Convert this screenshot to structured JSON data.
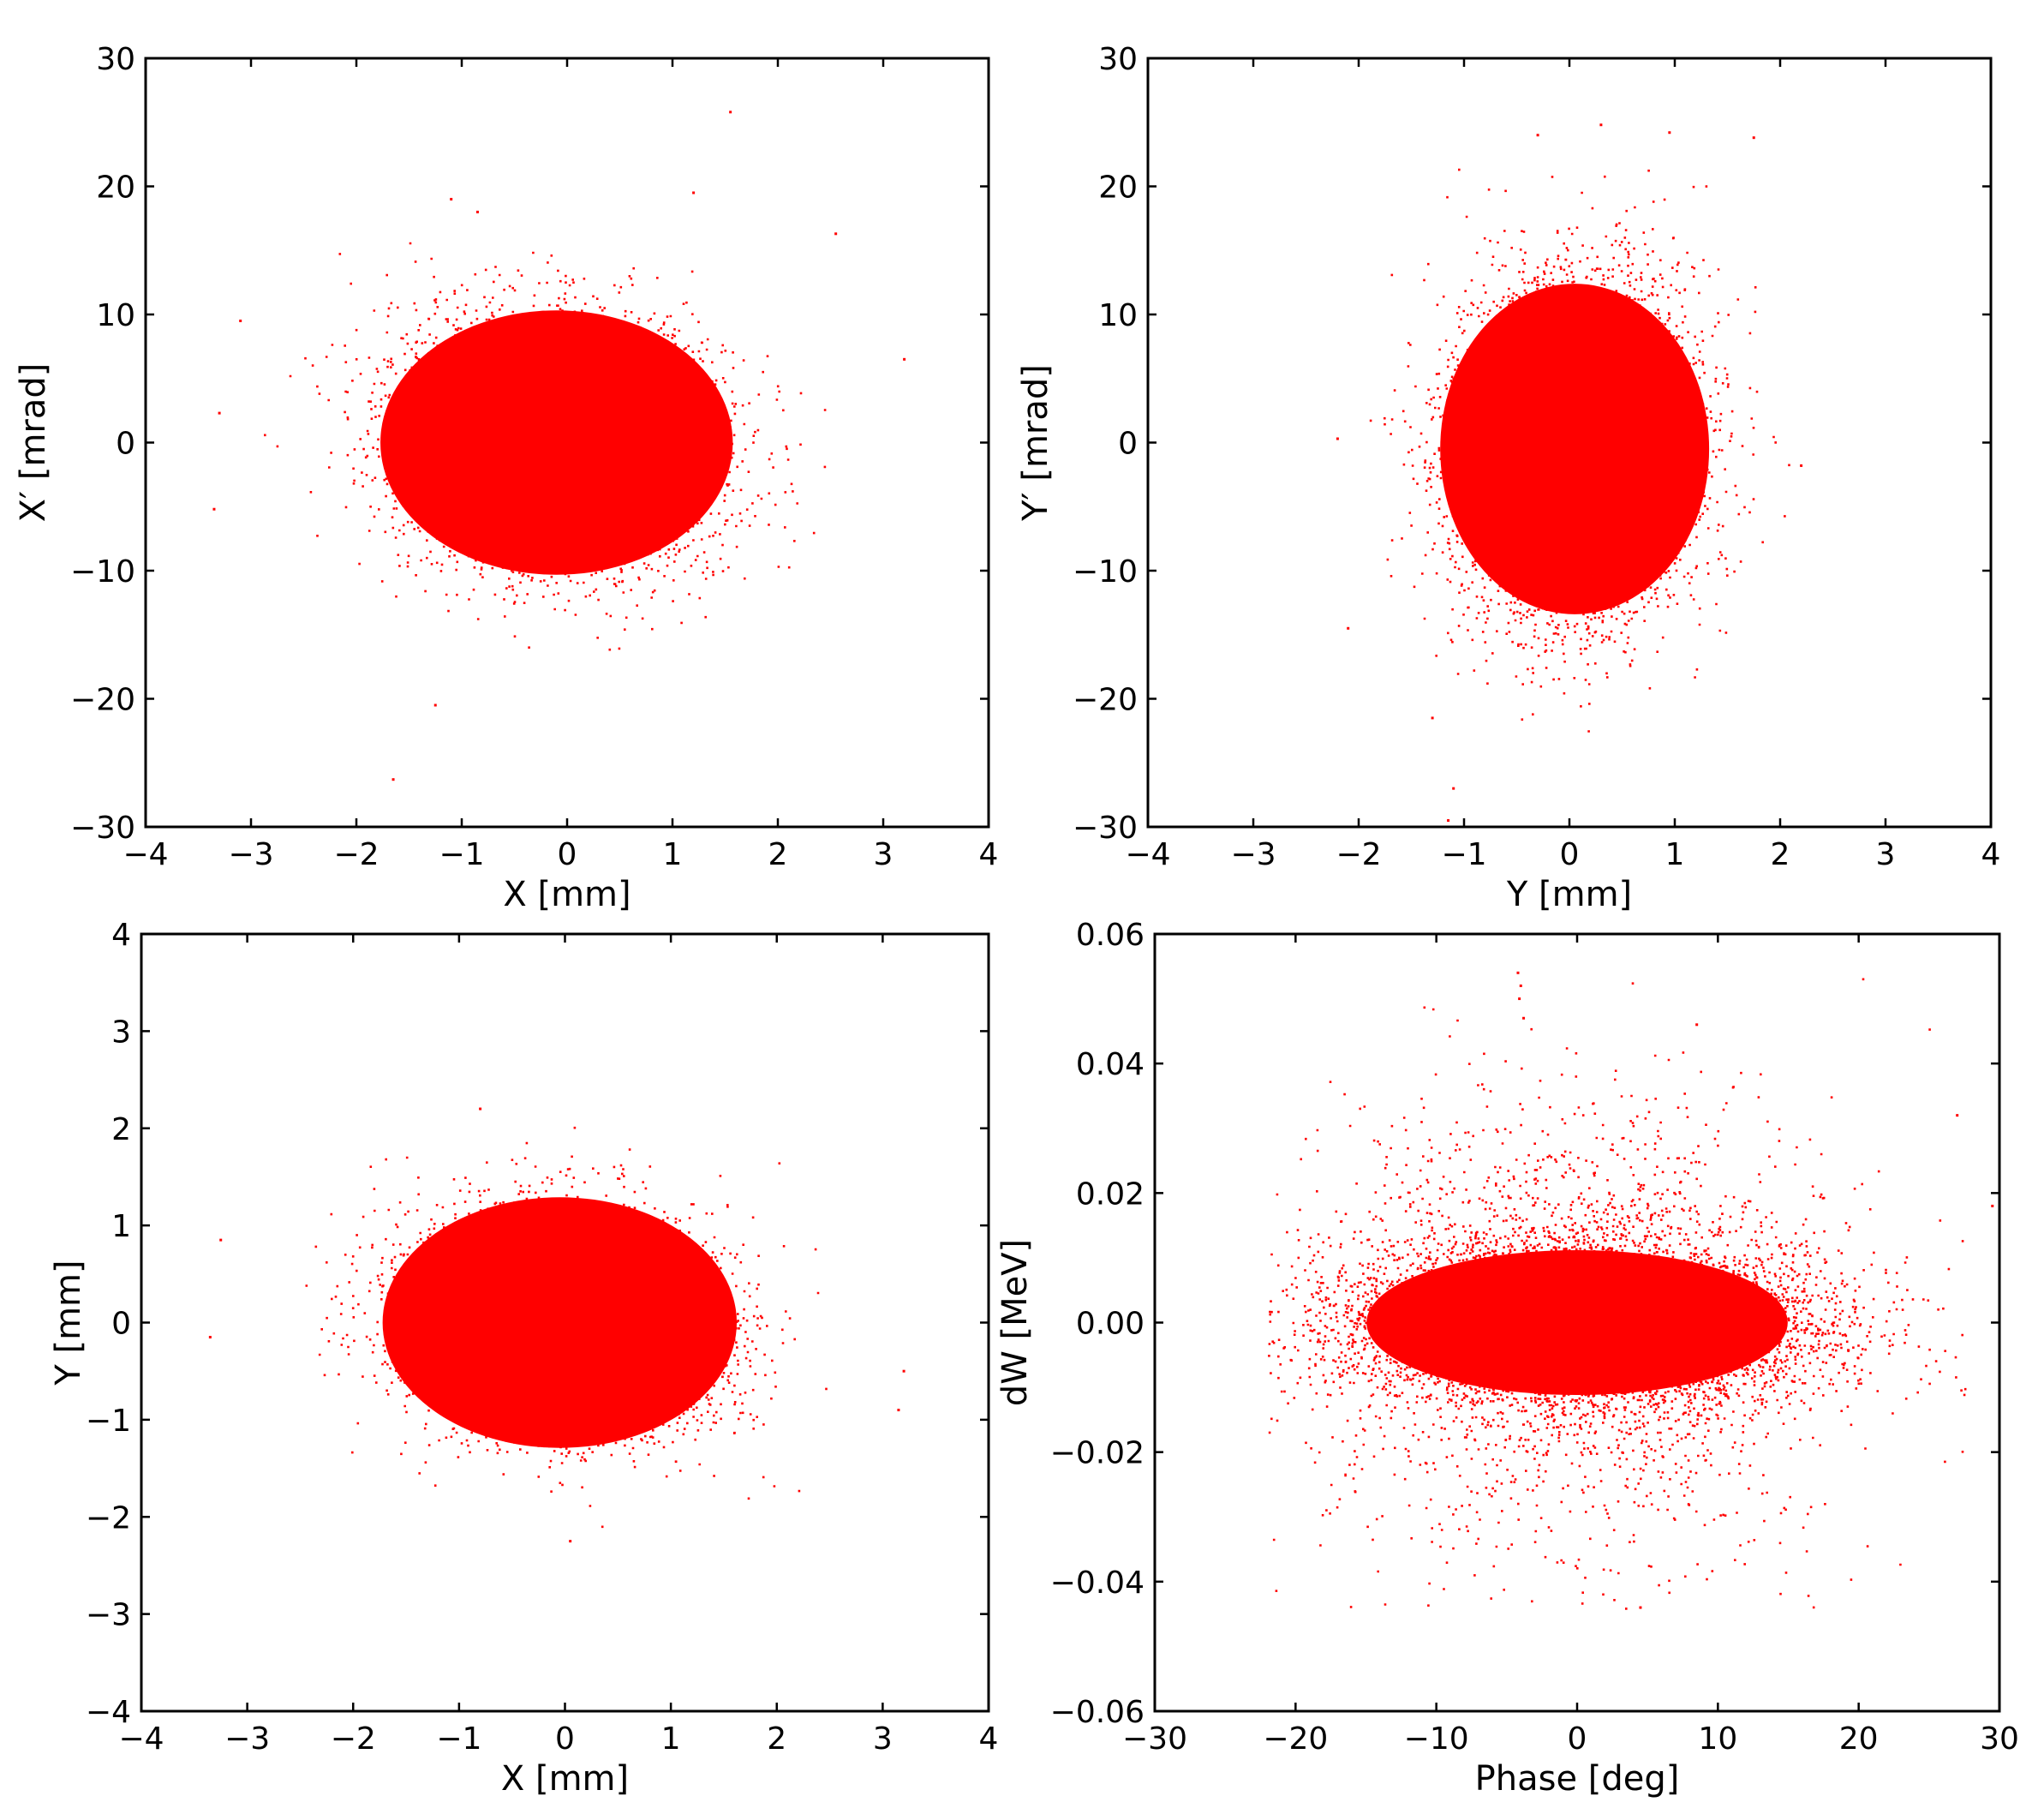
{
  "chart_data": [
    {
      "type": "scatter",
      "panel": "x-xprime",
      "xlabel": "X [mm]",
      "ylabel": "X′ [mrad]",
      "xlim": [
        -4,
        4
      ],
      "ylim": [
        -30,
        30
      ],
      "xticks": [
        -4,
        -3,
        -2,
        -1,
        0,
        1,
        2,
        3,
        4
      ],
      "yticks": [
        -30,
        -20,
        -10,
        0,
        10,
        20,
        30
      ],
      "xtick_labels": [
        "−4",
        "−3",
        "−2",
        "−1",
        "0",
        "1",
        "2",
        "3",
        "4"
      ],
      "ytick_labels": [
        "−30",
        "−20",
        "−10",
        "0",
        "10",
        "20",
        "30"
      ],
      "color": "#ff0000",
      "grid": false,
      "distribution": {
        "cx": -0.1,
        "cy": 0.0,
        "sx": 0.72,
        "sy": 4.6,
        "corr": -0.05,
        "core_half_width_x": 1.9,
        "core_half_width_y": 12,
        "x_range": [
          -3.3,
          3.2
        ],
        "y_range": [
          -17,
          16
        ]
      },
      "outliers": [
        [
          1.55,
          25.8
        ],
        [
          1.2,
          19.5
        ],
        [
          -1.1,
          19.0
        ],
        [
          -0.85,
          18.0
        ],
        [
          -1.25,
          -20.5
        ],
        [
          -1.65,
          -26.3
        ],
        [
          3.2,
          6.5
        ],
        [
          -3.3,
          2.3
        ],
        [
          -3.35,
          -5.2
        ],
        [
          -3.1,
          9.5
        ],
        [
          2.55,
          16.3
        ]
      ]
    },
    {
      "type": "scatter",
      "panel": "y-yprime",
      "xlabel": "Y [mm]",
      "ylabel": "Y′ [mrad]",
      "xlim": [
        -4,
        4
      ],
      "ylim": [
        -30,
        30
      ],
      "xticks": [
        -4,
        -3,
        -2,
        -1,
        0,
        1,
        2,
        3,
        4
      ],
      "yticks": [
        -30,
        -20,
        -10,
        0,
        10,
        20,
        30
      ],
      "xtick_labels": [
        "−4",
        "−3",
        "−2",
        "−1",
        "0",
        "1",
        "2",
        "3",
        "4"
      ],
      "ytick_labels": [
        "−30",
        "−20",
        "−10",
        "0",
        "10",
        "20",
        "30"
      ],
      "color": "#ff0000",
      "grid": false,
      "distribution": {
        "cx": 0.05,
        "cy": -0.5,
        "sx": 0.55,
        "sy": 6.5,
        "corr": 0.05,
        "core_half_width_x": 1.45,
        "core_half_width_y": 15,
        "x_range": [
          -2.2,
          2.2
        ],
        "y_range": [
          -24,
          24
        ]
      },
      "outliers": [
        [
          -1.15,
          -29.5
        ],
        [
          -1.1,
          -27.0
        ],
        [
          0.3,
          24.8
        ],
        [
          0.95,
          24.2
        ],
        [
          1.75,
          23.8
        ],
        [
          -0.3,
          24.0
        ],
        [
          -2.2,
          0.3
        ],
        [
          -2.1,
          -14.5
        ],
        [
          2.2,
          -1.8
        ],
        [
          -1.3,
          -21.5
        ]
      ]
    },
    {
      "type": "scatter",
      "panel": "x-y",
      "xlabel": "X [mm]",
      "ylabel": "Y [mm]",
      "xlim": [
        -4,
        4
      ],
      "ylim": [
        -4,
        4
      ],
      "xticks": [
        -4,
        -3,
        -2,
        -1,
        0,
        1,
        2,
        3,
        4
      ],
      "yticks": [
        -4,
        -3,
        -2,
        -1,
        0,
        1,
        2,
        3,
        4
      ],
      "xtick_labels": [
        "−4",
        "−3",
        "−2",
        "−1",
        "0",
        "1",
        "2",
        "3",
        "4"
      ],
      "ytick_labels": [
        "−4",
        "−3",
        "−2",
        "−1",
        "0",
        "1",
        "2",
        "3",
        "4"
      ],
      "color": "#ff0000",
      "grid": false,
      "distribution": {
        "cx": -0.05,
        "cy": 0.0,
        "sx": 0.72,
        "sy": 0.55,
        "corr": -0.1,
        "core_half_width_x": 1.9,
        "core_half_width_y": 1.5,
        "x_range": [
          -3.3,
          3.2
        ],
        "y_range": [
          -2.25,
          2.2
        ]
      },
      "outliers": [
        [
          -3.35,
          -0.15
        ],
        [
          3.2,
          -0.5
        ],
        [
          3.15,
          -0.9
        ],
        [
          -3.25,
          0.85
        ],
        [
          -0.8,
          2.2
        ],
        [
          0.05,
          -2.25
        ]
      ]
    },
    {
      "type": "scatter",
      "panel": "phase-dw",
      "xlabel": "Phase [deg]",
      "ylabel": "dW [MeV]",
      "xlim": [
        -30,
        30
      ],
      "ylim": [
        -0.06,
        0.06
      ],
      "xticks": [
        -30,
        -20,
        -10,
        0,
        10,
        20,
        30
      ],
      "yticks": [
        -0.06,
        -0.04,
        -0.02,
        0.0,
        0.02,
        0.04,
        0.06
      ],
      "xtick_labels": [
        "−30",
        "−20",
        "−10",
        "0",
        "10",
        "20",
        "30"
      ],
      "ytick_labels": [
        "−0.06",
        "−0.04",
        "−0.02",
        "0.00",
        "0.02",
        "0.04",
        "0.06"
      ],
      "color": "#ff0000",
      "grid": false,
      "distribution": {
        "cx": 0.0,
        "cy": 0.0,
        "sx": 8.5,
        "sy": 0.006,
        "corr": 0.0,
        "core_half_width_x": 17,
        "core_half_width_y": 0.013,
        "x_range": [
          -22,
          28
        ],
        "y_range": [
          -0.044,
          0.054
        ],
        "halo": true
      },
      "outliers": [
        [
          -4.2,
          0.054
        ],
        [
          -4.0,
          0.052
        ],
        [
          -4.1,
          0.05
        ],
        [
          -3.8,
          0.047
        ],
        [
          8.5,
          0.046
        ],
        [
          29.5,
          0.018
        ],
        [
          27.0,
          0.032
        ],
        [
          4.5,
          -0.044
        ]
      ]
    }
  ]
}
